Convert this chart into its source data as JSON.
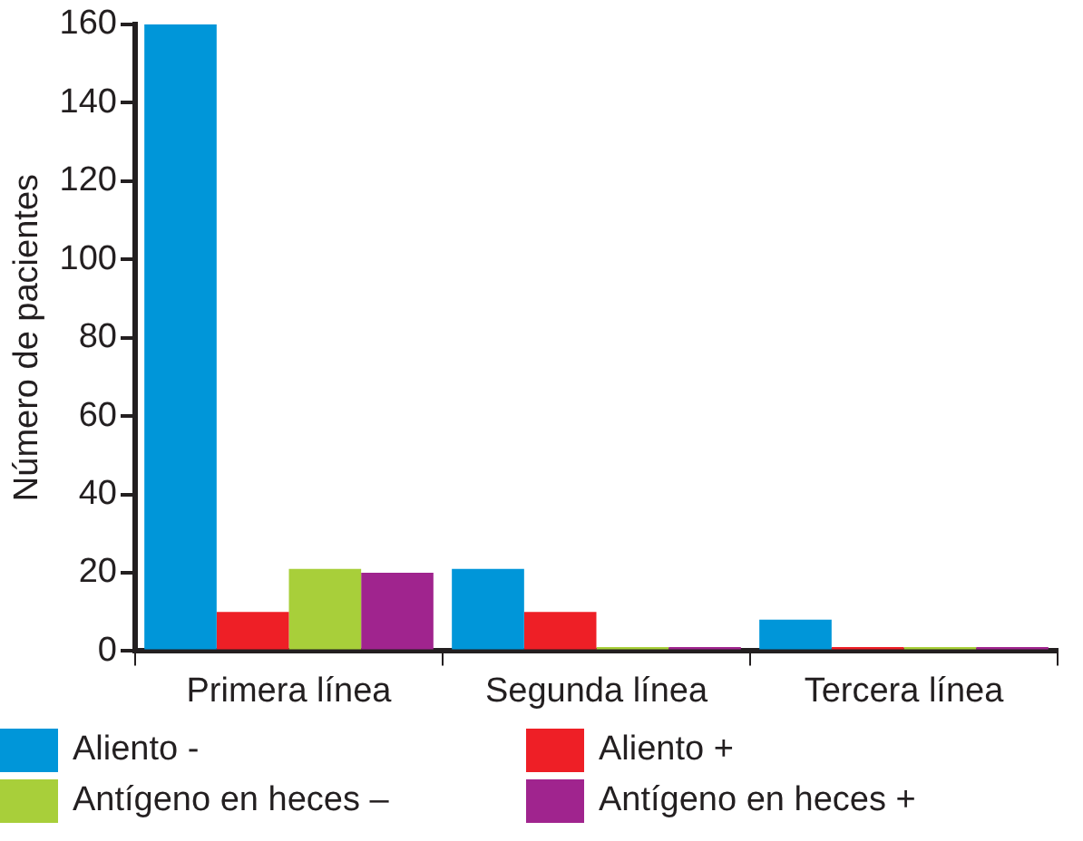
{
  "chart_data": {
    "type": "bar",
    "ylabel": "Número de pacientes",
    "categories": [
      "Primera línea",
      "Segunda línea",
      "Tercera línea"
    ],
    "series": [
      {
        "name": "Aliento -",
        "color": "#0096d9",
        "values": [
          160,
          21,
          8
        ]
      },
      {
        "name": "Aliento +",
        "color": "#ee1f26",
        "values": [
          10,
          10,
          1
        ]
      },
      {
        "name": "Antígeno en heces –",
        "color": "#a8cf3a",
        "values": [
          21,
          1,
          1
        ]
      },
      {
        "name": "Antígeno en heces +",
        "color": "#a0248e",
        "values": [
          20,
          1,
          1
        ]
      }
    ],
    "ylim": [
      0,
      160
    ],
    "yticks": [
      0,
      20,
      40,
      60,
      80,
      100,
      120,
      140,
      160
    ],
    "grid": false,
    "legend": "bottom"
  }
}
